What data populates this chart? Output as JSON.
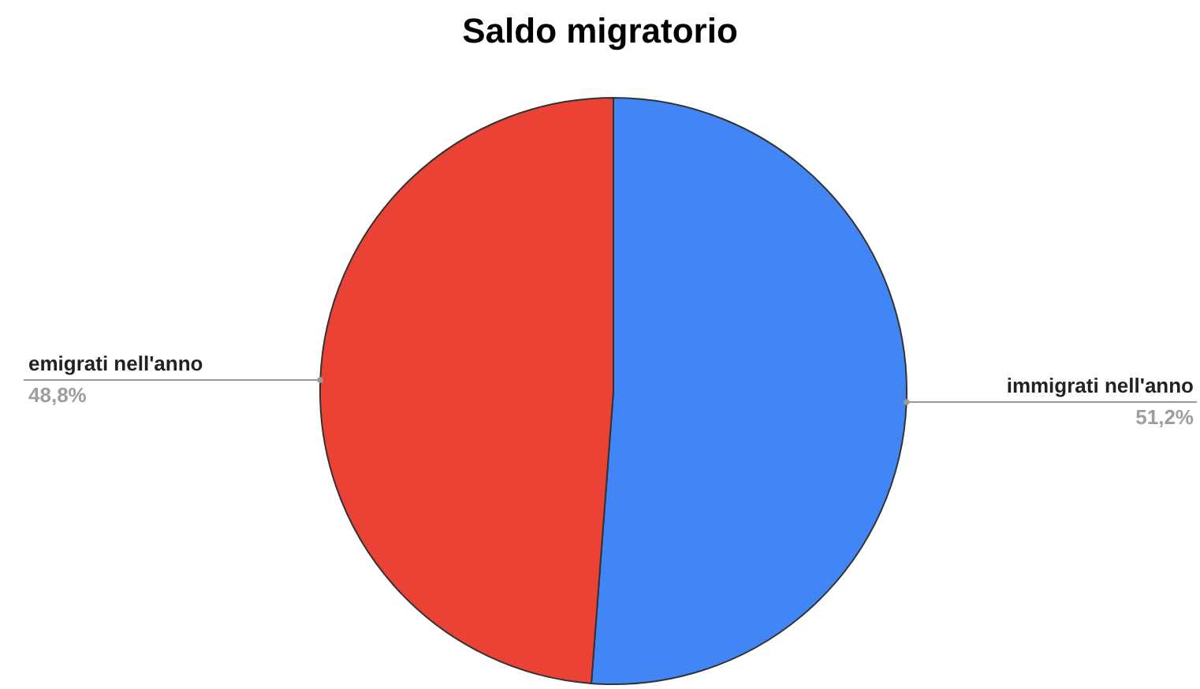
{
  "chart_data": {
    "type": "pie",
    "title": "Saldo migratorio",
    "categories": [
      "immigrati nell'anno",
      "emigrati nell'anno"
    ],
    "values": [
      51.2,
      48.8
    ],
    "colors": [
      "#4285f4",
      "#ea4335"
    ],
    "value_labels": [
      "51,2%",
      "48,8%"
    ]
  }
}
